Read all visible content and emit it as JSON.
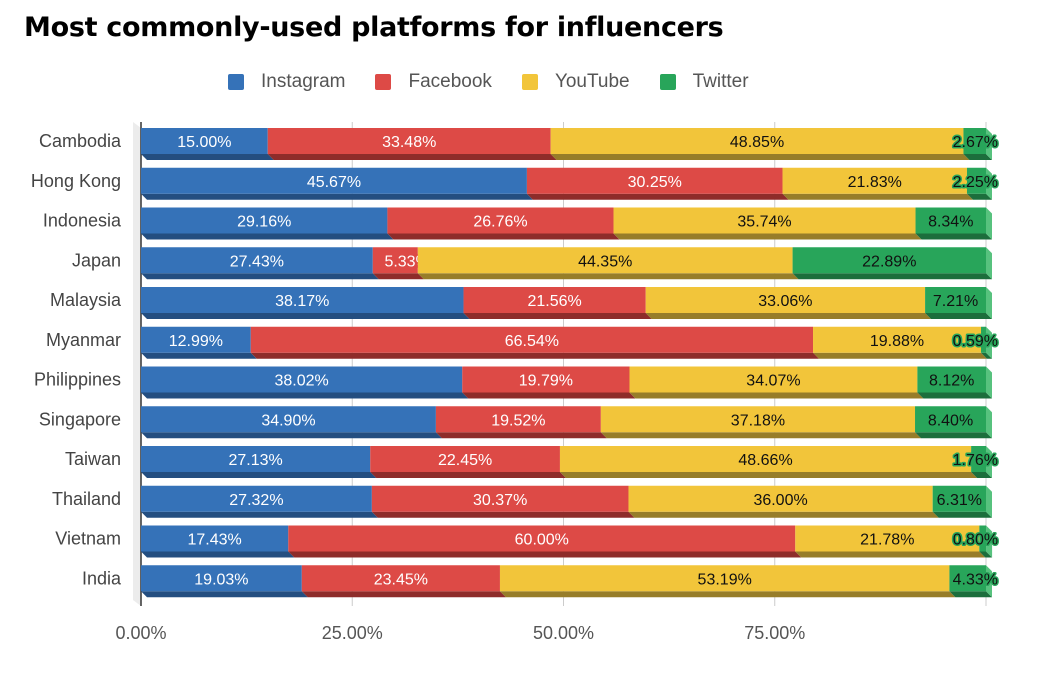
{
  "chart_data": {
    "type": "bar",
    "orientation": "horizontal",
    "stacked": true,
    "title": "Most commonly-used platforms for influencers",
    "xlabel": "",
    "ylabel": "",
    "xlim": [
      0,
      100
    ],
    "x_ticks": [
      "0.00%",
      "25.00%",
      "50.00%",
      "75.00%"
    ],
    "x_tick_values": [
      0,
      25,
      50,
      75
    ],
    "grid": true,
    "legend_position": "top",
    "categories": [
      "Cambodia",
      "Hong Kong",
      "Indonesia",
      "Japan",
      "Malaysia",
      "Myanmar",
      "Philippines",
      "Singapore",
      "Taiwan",
      "Thailand",
      "Vietnam",
      "India"
    ],
    "series": [
      {
        "name": "Instagram",
        "color": "#3572b8",
        "shade": "#244e80",
        "label_color": "#ffffff",
        "values": [
          15.0,
          45.67,
          29.16,
          27.43,
          38.17,
          12.99,
          38.02,
          34.9,
          27.13,
          27.32,
          17.43,
          19.03
        ]
      },
      {
        "name": "Facebook",
        "color": "#dd4a46",
        "shade": "#8e2c2a",
        "label_color": "#ffffff",
        "values": [
          33.48,
          30.25,
          26.76,
          5.33,
          21.56,
          66.54,
          19.79,
          19.52,
          22.45,
          30.37,
          60.0,
          23.45
        ]
      },
      {
        "name": "YouTube",
        "color": "#f2c53a",
        "shade": "#977d29",
        "label_color": "#111111",
        "values": [
          48.85,
          21.83,
          35.74,
          44.35,
          33.06,
          19.88,
          34.07,
          37.18,
          48.66,
          36.0,
          21.78,
          53.19
        ]
      },
      {
        "name": "Twitter",
        "color": "#28a55a",
        "shade": "#1c6e3c",
        "label_color": "#111111",
        "values": [
          2.67,
          2.25,
          8.34,
          22.89,
          7.21,
          0.59,
          8.12,
          8.4,
          1.76,
          6.31,
          0.8,
          4.33
        ]
      }
    ]
  }
}
